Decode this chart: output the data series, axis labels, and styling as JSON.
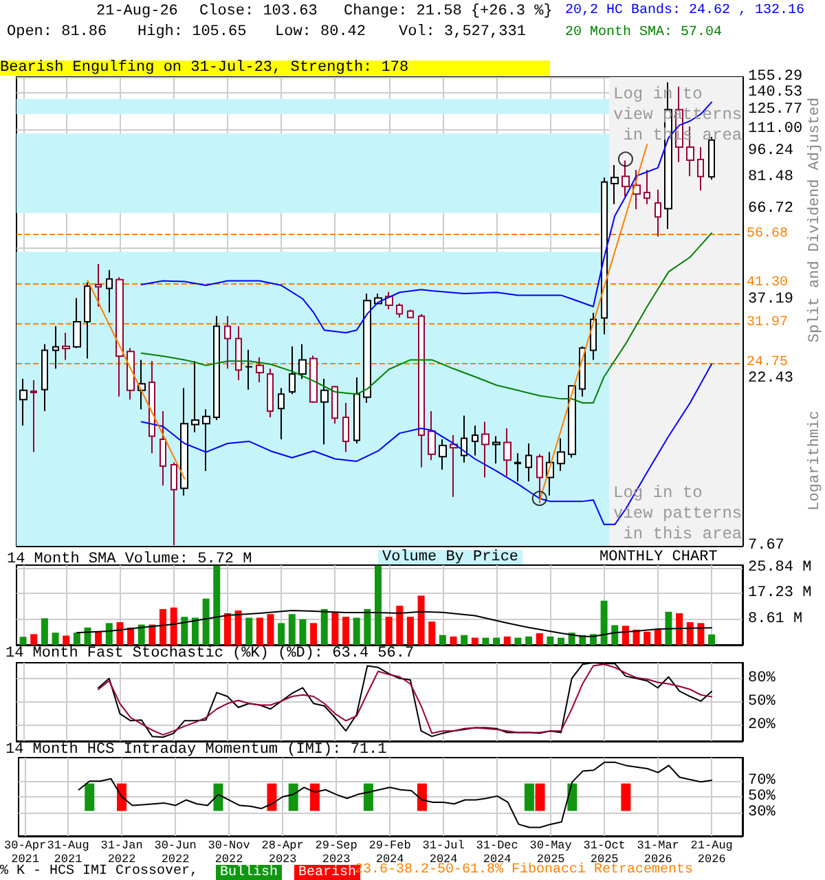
{
  "chart_data": [
    {
      "type": "candlestick",
      "log": "y",
      "grid": true,
      "legend": "top right",
      "tick_labels": "y",
      "x": [
        "2021-04",
        "2021-05",
        "2021-06",
        "2021-07",
        "2021-08",
        "2021-09",
        "2021-10",
        "2021-11",
        "2021-12",
        "2022-01",
        "2022-02",
        "2022-03",
        "2022-04",
        "2022-05",
        "2022-06",
        "2022-07",
        "2022-08",
        "2022-09",
        "2022-10",
        "2022-11",
        "2022-12",
        "2023-01",
        "2023-02",
        "2023-03",
        "2023-04",
        "2023-05",
        "2023-06",
        "2023-07",
        "2023-08",
        "2023-09",
        "2023-10",
        "2023-11",
        "2023-12",
        "2024-01",
        "2024-02",
        "2024-03",
        "2024-04",
        "2024-05",
        "2024-06",
        "2024-07",
        "2024-08",
        "2024-09",
        "2024-10",
        "2024-11",
        "2024-12",
        "2025-01",
        "2025-02",
        "2025-03",
        "2025-04",
        "2025-05",
        "2025-06",
        "2025-07",
        "2025-08",
        "2025-09",
        "2025-10",
        "2025-11",
        "2025-12",
        "2026-01",
        "2026-02",
        "2026-03",
        "2026-04",
        "2026-05",
        "2026-06",
        "2026-07",
        "2026-08"
      ],
      "ohlc": [
        [
          19.6,
          22.4,
          16.6,
          20.8
        ],
        [
          20.7,
          22.2,
          14.0,
          20.5
        ],
        [
          20.9,
          28.0,
          18.2,
          26.9
        ],
        [
          26.9,
          31.4,
          23.9,
          27.5
        ],
        [
          27.6,
          30.1,
          25.3,
          27.2
        ],
        [
          27.5,
          37.6,
          27.3,
          32.3
        ],
        [
          32.3,
          41.6,
          25.5,
          40.6
        ],
        [
          41.0,
          46.8,
          35.6,
          40.4
        ],
        [
          40.0,
          45.0,
          34.3,
          42.5
        ],
        [
          42.3,
          43.0,
          20.0,
          25.9
        ],
        [
          26.7,
          27.3,
          19.6,
          20.8
        ],
        [
          20.8,
          25.3,
          18.4,
          21.7
        ],
        [
          21.9,
          25.1,
          13.9,
          15.5
        ],
        [
          15.2,
          18.2,
          11.3,
          12.8
        ],
        [
          12.9,
          13.1,
          7.7,
          11.0
        ],
        [
          11.1,
          21.1,
          10.6,
          16.8
        ],
        [
          16.7,
          25.1,
          15.9,
          17.2
        ],
        [
          16.8,
          18.4,
          12.4,
          17.6
        ],
        [
          17.5,
          33.5,
          17.2,
          31.4
        ],
        [
          31.4,
          33.5,
          23.9,
          29.0
        ],
        [
          29.0,
          31.4,
          22.2,
          23.7
        ],
        [
          24.2,
          27.0,
          20.9,
          24.2
        ],
        [
          24.4,
          25.7,
          21.9,
          23.3
        ],
        [
          23.1,
          23.9,
          17.5,
          18.2
        ],
        [
          18.5,
          21.1,
          15.2,
          20.3
        ],
        [
          20.6,
          27.6,
          20.3,
          23.1
        ],
        [
          23.1,
          28.0,
          22.4,
          25.3
        ],
        [
          25.5,
          26.0,
          19.2,
          19.3
        ],
        [
          19.3,
          22.4,
          14.7,
          20.8
        ],
        [
          21.3,
          21.4,
          16.8,
          17.4
        ],
        [
          17.5,
          19.2,
          14.0,
          15.0
        ],
        [
          15.1,
          22.6,
          14.8,
          20.3
        ],
        [
          19.9,
          38.7,
          19.2,
          37.0
        ],
        [
          36.3,
          38.7,
          36.3,
          37.6
        ],
        [
          38.0,
          39.1,
          35.0,
          35.9
        ],
        [
          35.9,
          36.3,
          33.2,
          34.0
        ],
        [
          34.6,
          34.9,
          33.1,
          33.2
        ],
        [
          33.5,
          33.9,
          12.7,
          15.6
        ],
        [
          16.0,
          18.2,
          13.3,
          13.8
        ],
        [
          13.6,
          15.2,
          12.5,
          14.6
        ],
        [
          14.7,
          15.6,
          10.5,
          14.4
        ],
        [
          13.7,
          17.7,
          13.1,
          15.3
        ],
        [
          15.0,
          16.6,
          13.7,
          15.6
        ],
        [
          15.7,
          17.0,
          11.9,
          14.7
        ],
        [
          14.7,
          15.5,
          13.0,
          14.9
        ],
        [
          14.9,
          16.3,
          12.0,
          13.3
        ],
        [
          13.0,
          13.9,
          11.6,
          13.1
        ],
        [
          12.7,
          14.8,
          11.6,
          13.7
        ],
        [
          13.6,
          13.8,
          10.1,
          11.9
        ],
        [
          11.9,
          14.0,
          10.6,
          13.1
        ],
        [
          13.0,
          15.3,
          12.4,
          14.0
        ],
        [
          13.8,
          21.5,
          13.5,
          21.4
        ],
        [
          21.0,
          27.6,
          20.0,
          27.3
        ],
        [
          26.9,
          34.2,
          25.3,
          32.8
        ],
        [
          33.1,
          81.5,
          29.8,
          79.2
        ],
        [
          78.4,
          88.3,
          68.7,
          81.5
        ],
        [
          82.1,
          90.9,
          72.2,
          76.9
        ],
        [
          77.5,
          85.5,
          66.5,
          73.3
        ],
        [
          74.0,
          85.5,
          68.7,
          71.4
        ],
        [
          69.2,
          75.4,
          55.8,
          63.3
        ],
        [
          66.7,
          150,
          58.6,
          126.0
        ],
        [
          126.0,
          146,
          90.0,
          99.0
        ],
        [
          99.0,
          113,
          82.2,
          91.1
        ],
        [
          91.5,
          99,
          75.0,
          82.05
        ],
        [
          81.86,
          105.65,
          80.42,
          103.63
        ]
      ],
      "colors": [
        "#000000",
        "#990033",
        "#000000",
        "#000000",
        "#990033",
        "#000000",
        "#000000",
        "#990033",
        "#000000",
        "#990033",
        "#990033",
        "#000000",
        "#990033",
        "#990033",
        "#990033",
        "#000000",
        "#000000",
        "#000000",
        "#000000",
        "#990033",
        "#990033",
        "#000000",
        "#990033",
        "#990033",
        "#000000",
        "#000000",
        "#000000",
        "#990033",
        "#000000",
        "#990033",
        "#990033",
        "#000000",
        "#000000",
        "#000000",
        "#990033",
        "#990033",
        "#990033",
        "#990033",
        "#990033",
        "#000000",
        "#990033",
        "#000000",
        "#000000",
        "#990033",
        "#000000",
        "#990033",
        "#000000",
        "#000000",
        "#990033",
        "#000000",
        "#000000",
        "#000000",
        "#000000",
        "#000000",
        "#000000",
        "#000000",
        "#990033",
        "#990033",
        "#990033",
        "#990033",
        "#000000",
        "#990033",
        "#990033",
        "#990033",
        "#000000"
      ],
      "xlim": [
        "2021-03-13",
        "2026-10-28"
      ],
      "xticks": [
        {
          "value": "2021-04",
          "label": null
        },
        {
          "value": "2021-08",
          "label": null
        },
        {
          "value": "2022-01",
          "label": null
        },
        {
          "value": "2022-06",
          "label": null
        },
        {
          "value": "2022-11",
          "label": null
        },
        {
          "value": "2023-04",
          "label": null
        },
        {
          "value": "2023-09",
          "label": null
        },
        {
          "value": "2024-02",
          "label": null
        },
        {
          "value": "2024-07",
          "label": null
        },
        {
          "value": "2024-12",
          "label": null
        },
        {
          "value": "2025-05",
          "label": null
        },
        {
          "value": "2025-10",
          "label": null
        },
        {
          "value": "2026-03",
          "label": null
        },
        {
          "value": "2026-08",
          "label": null
        }
      ],
      "ylim": [
        7.67,
        155.29
      ],
      "yticks": [
        7.67,
        22.43,
        37.19,
        {
          "value": 51.96,
          "label": null
        },
        66.72,
        81.48,
        96.24,
        {
          "value": 111.0,
          "label": "111.00"
        },
        125.77,
        140.53,
        155.29
      ],
      "series": [
        {
          "type": "line",
          "name": "20,2 HC Bands: 24.62 , 132.16",
          "color": "#0000ff",
          "x": [
            "2022-03",
            "2022-05",
            "2022-07",
            "2022-09",
            "2022-11",
            "2023-02",
            "2023-04",
            "2023-06",
            "2023-07",
            "2023-08",
            "2023-10",
            "2023-11",
            "2023-12",
            "2024-01",
            "2024-03",
            "2024-05",
            "2024-06",
            "2024-09",
            "2024-12",
            "2025-02",
            "2025-04",
            "2025-06",
            "2025-07",
            "2025-09",
            "2025-10",
            "2025-11",
            "2025-12",
            "2026-01",
            "2026-02",
            "2026-03",
            "2026-04",
            "2026-05",
            "2026-06",
            "2026-07",
            "2026-08"
          ],
          "values": [
            41.0,
            42.0,
            41.8,
            40.8,
            42.0,
            42.0,
            40.8,
            37.4,
            34.3,
            30.6,
            30.1,
            30.6,
            34.0,
            36.6,
            39.0,
            39.7,
            39.4,
            38.7,
            39.0,
            38.3,
            38.3,
            38.3,
            37.4,
            35.6,
            48.7,
            63.7,
            72.1,
            82.3,
            84.5,
            86.7,
            105.3,
            114.0,
            117.1,
            122.4,
            132.16
          ]
        },
        {
          "type": "line",
          "color": "#0000ff",
          "x": [
            "2022-03",
            "2022-05",
            "2022-07",
            "2022-09",
            "2022-11",
            "2023-01",
            "2023-03",
            "2023-05",
            "2023-07",
            "2023-09",
            "2023-11",
            "2024-01",
            "2024-03",
            "2024-05",
            "2024-06",
            "2024-08",
            "2024-10",
            "2024-12",
            "2025-02",
            "2025-04",
            "2025-05",
            "2025-08",
            "2025-09",
            "2025-10",
            "2025-11",
            "2025-12",
            "2026-02",
            "2026-04",
            "2026-06",
            "2026-08"
          ],
          "values": [
            17.0,
            16.5,
            14.8,
            14.0,
            14.8,
            15.0,
            14.1,
            13.5,
            14.1,
            13.4,
            13.2,
            14.1,
            15.8,
            16.3,
            16.1,
            14.8,
            13.4,
            12.4,
            11.4,
            10.4,
            10.2,
            10.2,
            10.3,
            8.8,
            8.8,
            9.7,
            12.3,
            15.5,
            19.2,
            24.62
          ]
        },
        {
          "type": "line",
          "name": "20 Month SMA: 57.04",
          "color": "#008000",
          "x": [
            "2022-03",
            "2022-05",
            "2022-07",
            "2022-08",
            "2022-09",
            "2022-11",
            "2023-01",
            "2023-03",
            "2023-05",
            "2023-07",
            "2023-09",
            "2023-11",
            "2023-12",
            "2024-02",
            "2024-04",
            "2024-06",
            "2024-08",
            "2024-10",
            "2024-12",
            "2025-02",
            "2025-04",
            "2025-06",
            "2025-07",
            "2025-08",
            "2025-09",
            "2025-10",
            "2025-12",
            "2026-02",
            "2026-04",
            "2026-06",
            "2026-08"
          ],
          "values": [
            26.4,
            25.9,
            25.3,
            24.9,
            24.4,
            25.1,
            25.1,
            24.6,
            23.5,
            22.1,
            20.6,
            20.3,
            21.0,
            23.8,
            25.3,
            25.3,
            23.9,
            22.7,
            21.5,
            20.8,
            20.1,
            19.7,
            19.7,
            19.2,
            19.2,
            22.7,
            28.0,
            35.6,
            44.5,
            48.9,
            57.04
          ]
        },
        {
          "type": "line",
          "color": "#ff8000",
          "x": [
            "2021-10",
            "2022-07"
          ],
          "values": [
            42.1,
            11.8
          ]
        },
        {
          "type": "line",
          "color": "#ff8000",
          "x": [
            "2025-04",
            "2026-02"
          ],
          "values": [
            10.2,
            100.6
          ]
        },
        {
          "type": "scatter",
          "marker": "circle",
          "color": "#000000",
          "x": [
            "2025-04",
            "2025-12"
          ],
          "values": [
            10.4,
            91.7
          ]
        }
      ],
      "marker": "none",
      "ref_lines": [
        {
          "axis": "y",
          "value": 56.68,
          "label": "56.68",
          "color": "#ff8000",
          "line_style": "dashed"
        },
        {
          "axis": "y",
          "value": 41.3,
          "label": "41.30",
          "color": "#ff8000",
          "line_style": "dashed"
        },
        {
          "axis": "y",
          "value": 31.97,
          "label": "31.97",
          "color": "#ff8000",
          "line_style": "dashed"
        },
        {
          "axis": "y",
          "value": 24.75,
          "label": "24.75",
          "color": "#ff8000",
          "line_style": "dashed"
        }
      ],
      "bands": [
        {
          "axis": "y",
          "from": 7.67,
          "to": 50.6,
          "color": "#c6f4fb"
        },
        {
          "axis": "y",
          "from": 64.9,
          "to": 108.1,
          "color": "#c6f4fb"
        },
        {
          "axis": "y",
          "from": 122.4,
          "to": 134.9,
          "color": "#c6f4fb"
        },
        {
          "axis": "x",
          "from": "2025-10-16",
          "to": "2026-10-28",
          "color": "#f2f2f2"
        }
      ],
      "annotations": [
        "21-Aug-26",
        "Close: 103.63",
        "Change: 21.58 {+26.3 %}",
        "Open: 81.86",
        "High: 105.65",
        "Low: 80.42",
        "Vol: 3,527,331",
        "Bearish Engulfing on 31-Jul-23, Strength: 178",
        "Log in to view patterns in this area",
        "Log in to view patterns in this area",
        "Split and Dividend Adjusted",
        "Logarithmic",
        "Volume By Price"
      ]
    },
    {
      "type": "bar",
      "grid": true,
      "legend": "top left",
      "tick_labels": "y",
      "marker": "none",
      "x": [
        "2021-04",
        "2021-05",
        "2021-06",
        "2021-07",
        "2021-08",
        "2021-09",
        "2021-10",
        "2021-11",
        "2021-12",
        "2022-01",
        "2022-02",
        "2022-03",
        "2022-04",
        "2022-05",
        "2022-06",
        "2022-07",
        "2022-08",
        "2022-09",
        "2022-10",
        "2022-11",
        "2022-12",
        "2023-01",
        "2023-02",
        "2023-03",
        "2023-04",
        "2023-05",
        "2023-06",
        "2023-07",
        "2023-08",
        "2023-09",
        "2023-10",
        "2023-11",
        "2023-12",
        "2024-01",
        "2024-02",
        "2024-03",
        "2024-04",
        "2024-05",
        "2024-06",
        "2024-07",
        "2024-08",
        "2024-09",
        "2024-10",
        "2024-11",
        "2024-12",
        "2025-01",
        "2025-02",
        "2025-03",
        "2025-04",
        "2025-05",
        "2025-06",
        "2025-07",
        "2025-08",
        "2025-09",
        "2025-10",
        "2025-11",
        "2025-12",
        "2026-01",
        "2026-02",
        "2026-03",
        "2026-04",
        "2026-05",
        "2026-06",
        "2026-07",
        "2026-08"
      ],
      "values": [
        2.7,
        3.6,
        8.9,
        4.1,
        3.1,
        4.1,
        5.8,
        4.4,
        7.3,
        7.6,
        5.8,
        6.8,
        6.8,
        12.0,
        12.5,
        9.4,
        9.1,
        15.5,
        26.5,
        10.6,
        11.5,
        9.1,
        9.1,
        10.3,
        7.3,
        10.3,
        8.6,
        7.3,
        12.0,
        10.8,
        9.4,
        9.1,
        12.0,
        26.5,
        9.4,
        13.1,
        9.4,
        16.5,
        7.8,
        3.3,
        2.8,
        3.3,
        2.4,
        2.4,
        2.4,
        2.8,
        2.4,
        2.8,
        3.9,
        2.8,
        2.4,
        4.1,
        3.3,
        3.6,
        14.8,
        6.6,
        6.4,
        5.1,
        4.4,
        5.3,
        11.1,
        10.6,
        7.6,
        7.3,
        3.5
      ],
      "colors": [
        "#129612",
        "#ff0000",
        "#129612",
        "#129612",
        "#ff0000",
        "#129612",
        "#129612",
        "#ff0000",
        "#129612",
        "#ff0000",
        "#ff0000",
        "#129612",
        "#ff0000",
        "#ff0000",
        "#ff0000",
        "#129612",
        "#129612",
        "#129612",
        "#129612",
        "#ff0000",
        "#ff0000",
        "#129612",
        "#ff0000",
        "#ff0000",
        "#129612",
        "#129612",
        "#129612",
        "#ff0000",
        "#129612",
        "#ff0000",
        "#ff0000",
        "#129612",
        "#129612",
        "#129612",
        "#ff0000",
        "#ff0000",
        "#ff0000",
        "#ff0000",
        "#ff0000",
        "#129612",
        "#ff0000",
        "#129612",
        "#ff0000",
        "#129612",
        "#129612",
        "#ff0000",
        "#129612",
        "#129612",
        "#ff0000",
        "#129612",
        "#129612",
        "#129612",
        "#129612",
        "#129612",
        "#129612",
        "#129612",
        "#ff0000",
        "#ff0000",
        "#ff0000",
        "#ff0000",
        "#129612",
        "#ff0000",
        "#ff0000",
        "#ff0000",
        "#129612"
      ],
      "xlim": [
        "2021-03-13",
        "2026-10-28"
      ],
      "xticks": [
        {
          "value": "2021-04",
          "label": null
        },
        {
          "value": "2021-08",
          "label": null
        },
        {
          "value": "2022-01",
          "label": null
        },
        {
          "value": "2022-06",
          "label": null
        },
        {
          "value": "2022-11",
          "label": null
        },
        {
          "value": "2023-04",
          "label": null
        },
        {
          "value": "2023-09",
          "label": null
        },
        {
          "value": "2024-02",
          "label": null
        },
        {
          "value": "2024-07",
          "label": null
        },
        {
          "value": "2024-12",
          "label": null
        },
        {
          "value": "2025-05",
          "label": null
        },
        {
          "value": "2025-10",
          "label": null
        },
        {
          "value": "2026-03",
          "label": null
        },
        {
          "value": "2026-08",
          "label": null
        }
      ],
      "ylim": [
        0,
        26.7
      ],
      "yticks": [
        {
          "value": 8.61,
          "label": "8.61 M"
        },
        {
          "value": 17.23,
          "label": "17.23 M"
        },
        {
          "value": 25.84,
          "label": "25.84 M"
        }
      ],
      "series": [
        {
          "type": "line",
          "name": "14 Month SMA Volume: 5.72 M",
          "color": "#000000",
          "x": [
            "2021-09",
            "2021-12",
            "2022-03",
            "2022-06",
            "2022-11",
            "2023-02",
            "2023-05",
            "2023-07",
            "2023-10",
            "2024-01",
            "2024-03",
            "2024-05",
            "2024-07",
            "2024-10",
            "2025-01",
            "2025-03",
            "2025-06",
            "2025-08",
            "2025-09",
            "2025-11",
            "2026-01",
            "2026-03",
            "2026-06",
            "2026-08"
          ],
          "values": [
            4.1,
            4.6,
            5.8,
            6.9,
            9.9,
            10.6,
            11.5,
            11.3,
            10.8,
            10.8,
            10.6,
            11.1,
            10.9,
            9.8,
            7.3,
            5.8,
            3.9,
            2.8,
            2.8,
            4.1,
            4.6,
            5.3,
            5.6,
            5.72
          ]
        }
      ],
      "annotations": [
        "MONTHLY CHART"
      ]
    },
    {
      "type": "line",
      "title": "14 Month Fast Stochastic (%K) (%D): 63.4 56.7",
      "grid": true,
      "tick_labels": "y",
      "marker": "none",
      "xlim": [
        "2021-03-13",
        "2026-10-28"
      ],
      "xticks": [
        {
          "value": "2021-04",
          "label": null
        },
        {
          "value": "2021-08",
          "label": null
        },
        {
          "value": "2022-01",
          "label": null
        },
        {
          "value": "2022-06",
          "label": null
        },
        {
          "value": "2022-11",
          "label": null
        },
        {
          "value": "2023-04",
          "label": null
        },
        {
          "value": "2023-09",
          "label": null
        },
        {
          "value": "2024-02",
          "label": null
        },
        {
          "value": "2024-07",
          "label": null
        },
        {
          "value": "2024-12",
          "label": null
        },
        {
          "value": "2025-05",
          "label": null
        },
        {
          "value": "2025-10",
          "label": null
        },
        {
          "value": "2026-03",
          "label": null
        },
        {
          "value": "2026-08",
          "label": null
        }
      ],
      "ylim": [
        0,
        100
      ],
      "yticks": [
        {
          "value": 20,
          "label": "20%"
        },
        {
          "value": 50,
          "label": "50%"
        },
        {
          "value": 80,
          "label": "80%"
        }
      ],
      "series": [
        {
          "color": "#000000",
          "x": [
            "2021-11",
            "2021-12",
            "2022-01",
            "2022-02",
            "2022-03",
            "2022-04",
            "2022-05",
            "2022-06",
            "2022-07",
            "2022-08",
            "2022-09",
            "2022-10",
            "2022-11",
            "2022-12",
            "2023-01",
            "2023-02",
            "2023-03",
            "2023-04",
            "2023-05",
            "2023-06",
            "2023-07",
            "2023-08",
            "2023-09",
            "2023-10",
            "2023-11",
            "2023-12",
            "2024-01",
            "2024-02",
            "2024-03",
            "2024-04",
            "2024-05",
            "2024-06",
            "2024-07",
            "2024-08",
            "2024-09",
            "2024-10",
            "2024-11",
            "2024-12",
            "2025-01",
            "2025-02",
            "2025-03",
            "2025-04",
            "2025-05",
            "2025-06",
            "2025-07",
            "2025-08",
            "2025-09",
            "2025-10",
            "2025-11",
            "2025-12",
            "2026-01",
            "2026-02",
            "2026-03",
            "2026-04",
            "2026-05",
            "2026-06",
            "2026-07",
            "2026-08"
          ],
          "values": [
            68,
            80,
            35,
            26,
            27,
            6,
            5,
            10,
            26,
            26,
            27,
            62,
            57,
            43,
            48,
            46,
            41,
            51,
            61,
            68,
            48,
            45,
            30,
            13,
            34,
            96,
            94,
            86,
            80,
            78,
            13,
            6,
            10,
            13,
            15,
            17,
            17,
            16,
            11,
            11,
            11,
            10,
            13,
            11,
            80,
            98,
            100,
            99,
            99,
            83,
            80,
            77,
            68,
            82,
            64,
            57,
            51,
            63.4
          ]
        },
        {
          "color": "#990033",
          "x": [
            "2021-11",
            "2021-12",
            "2022-01",
            "2022-02",
            "2022-03",
            "2022-04",
            "2022-05",
            "2022-06",
            "2022-07",
            "2022-08",
            "2022-09",
            "2022-10",
            "2022-11",
            "2022-12",
            "2023-01",
            "2023-02",
            "2023-03",
            "2023-04",
            "2023-05",
            "2023-06",
            "2023-07",
            "2023-08",
            "2023-09",
            "2023-10",
            "2023-11",
            "2023-12",
            "2024-01",
            "2024-02",
            "2024-03",
            "2024-04",
            "2024-05",
            "2024-06",
            "2024-07",
            "2024-08",
            "2024-09",
            "2024-10",
            "2024-11",
            "2024-12",
            "2025-01",
            "2025-02",
            "2025-03",
            "2025-04",
            "2025-05",
            "2025-06",
            "2025-07",
            "2025-08",
            "2025-09",
            "2025-10",
            "2025-11",
            "2025-12",
            "2026-01",
            "2026-02",
            "2026-03",
            "2026-04",
            "2026-05",
            "2026-06",
            "2026-07",
            "2026-08"
          ],
          "values": [
            66,
            77,
            48,
            30,
            22,
            14,
            8,
            13,
            19,
            24,
            30,
            41,
            48,
            52,
            48,
            46,
            46,
            51,
            57,
            59,
            57,
            48,
            35,
            26,
            32,
            61,
            89,
            85,
            82,
            73,
            45,
            10,
            13,
            13,
            16,
            17,
            16,
            15,
            13,
            11,
            11,
            11,
            13,
            13,
            41,
            73,
            96,
            98,
            94,
            87,
            81,
            79,
            75,
            73,
            70,
            66,
            59,
            56.7
          ]
        }
      ]
    },
    {
      "type": "line",
      "title": "14 Month HCS Intraday Momentum (IMI): 71.1",
      "grid": true,
      "legend": "bottom",
      "legend_title": "% K - HCS IMI Crossover,",
      "marker": "none",
      "xlim": [
        "2021-03-13",
        "2026-10-28"
      ],
      "xticks": [
        {
          "value": "2021-04",
          "label": "30-Apr\n2021"
        },
        {
          "value": "2021-08",
          "label": "31-Aug\n2021"
        },
        {
          "value": "2022-01",
          "label": "31-Jan\n2022"
        },
        {
          "value": "2022-06",
          "label": "30-Jun\n2022"
        },
        {
          "value": "2022-11",
          "label": "30-Nov\n2022"
        },
        {
          "value": "2023-04",
          "label": "28-Apr\n2023"
        },
        {
          "value": "2023-09",
          "label": "29-Sep\n2023"
        },
        {
          "value": "2024-02",
          "label": "29-Feb\n2024"
        },
        {
          "value": "2024-07",
          "label": "31-Jul\n2024"
        },
        {
          "value": "2024-12",
          "label": "31-Dec\n2024"
        },
        {
          "value": "2025-05",
          "label": "30-May\n2025"
        },
        {
          "value": "2025-10",
          "label": "31-Oct\n2025"
        },
        {
          "value": "2026-03",
          "label": "31-Mar\n2026"
        },
        {
          "value": "2026-08",
          "label": "21-Aug\n2026"
        }
      ],
      "ylim": [
        0,
        100
      ],
      "yticks": [
        {
          "value": 30,
          "label": "30%"
        },
        {
          "value": 50,
          "label": "50%"
        },
        {
          "value": 70,
          "label": "70%"
        }
      ],
      "series": [
        {
          "color": "#000000",
          "x": [
            "2021-09",
            "2021-10",
            "2021-11",
            "2021-12",
            "2022-01",
            "2022-02",
            "2022-03",
            "2022-04",
            "2022-05",
            "2022-06",
            "2022-07",
            "2022-08",
            "2022-09",
            "2022-10",
            "2022-11",
            "2022-12",
            "2023-01",
            "2023-02",
            "2023-03",
            "2023-04",
            "2023-05",
            "2023-06",
            "2023-07",
            "2023-08",
            "2023-09",
            "2023-10",
            "2023-11",
            "2023-12",
            "2024-01",
            "2024-02",
            "2024-03",
            "2024-04",
            "2024-05",
            "2024-06",
            "2024-07",
            "2024-08",
            "2024-09",
            "2024-10",
            "2024-11",
            "2024-12",
            "2025-01",
            "2025-02",
            "2025-03",
            "2025-04",
            "2025-05",
            "2025-06",
            "2025-07",
            "2025-08",
            "2025-09",
            "2025-10",
            "2025-11",
            "2025-12",
            "2026-01",
            "2026-02",
            "2026-03",
            "2026-04",
            "2026-05",
            "2026-06",
            "2026-07",
            "2026-08"
          ],
          "values": [
            59,
            70,
            70,
            73,
            50,
            39,
            40,
            41,
            42,
            39,
            46,
            41,
            39,
            53,
            46,
            39,
            38,
            35,
            41,
            50,
            53,
            62,
            56,
            59,
            53,
            48,
            53,
            56,
            59,
            62,
            59,
            58,
            46,
            43,
            43,
            41,
            46,
            46,
            48,
            51,
            43,
            15,
            11,
            11,
            15,
            18,
            69,
            83,
            84,
            94,
            94,
            90,
            88,
            86,
            81,
            90,
            75,
            72,
            69,
            71.1
          ]
        },
        {
          "type": "bar",
          "name": "Bullish",
          "color": "#129612",
          "x": [
            "2021-10",
            "2022-10",
            "2023-05",
            "2023-12",
            "2025-03",
            "2025-07"
          ],
          "base": [
            32,
            32,
            32,
            32,
            32,
            32
          ],
          "values": [
            35,
            35,
            35,
            35,
            35,
            35
          ]
        },
        {
          "type": "bar",
          "name": "Bearish",
          "color": "#ff0000",
          "x": [
            "2022-01",
            "2023-03",
            "2023-07",
            "2024-05",
            "2025-04",
            "2025-12"
          ],
          "base": [
            32,
            32,
            32,
            32,
            32,
            32
          ],
          "values": [
            35,
            35,
            35,
            35,
            35,
            35
          ]
        }
      ],
      "annotations": [
        "23.6-38.2-50-61.8% Fibonacci Retracements"
      ]
    }
  ]
}
